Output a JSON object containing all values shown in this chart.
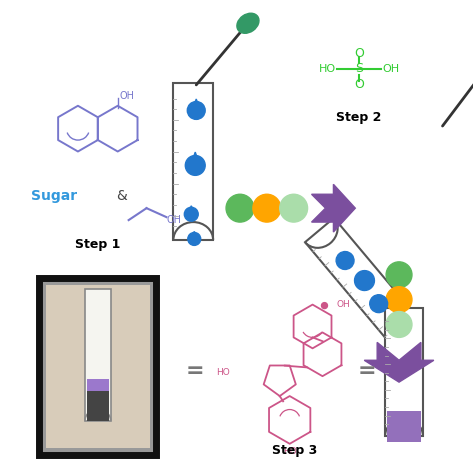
{
  "background_color": "#ffffff",
  "step1_label": "Step 1",
  "step2_label": "Step 2",
  "step3_label": "Step 3",
  "sugar_label": "Sugar",
  "colors": {
    "blue": "#1E6DB5",
    "blue_drop": "#2277CC",
    "green_dark": "#5CB85C",
    "green_light": "#AADDAA",
    "orange": "#FFA500",
    "purple": "#7B4F9E",
    "pink": "#CC5588",
    "cyan_text": "#3399DD",
    "h2so4_green": "#33CC33",
    "naphthol_blue": "#7777CC",
    "dropper_green": "#339966",
    "dropper_red": "#CC2222",
    "tube_outline": "#555555",
    "photo_border": "#111111",
    "photo_bg": "#B8A888",
    "photo_inner_bg": "#D8CCBA"
  },
  "figsize": [
    4.74,
    4.73
  ],
  "dpi": 100
}
